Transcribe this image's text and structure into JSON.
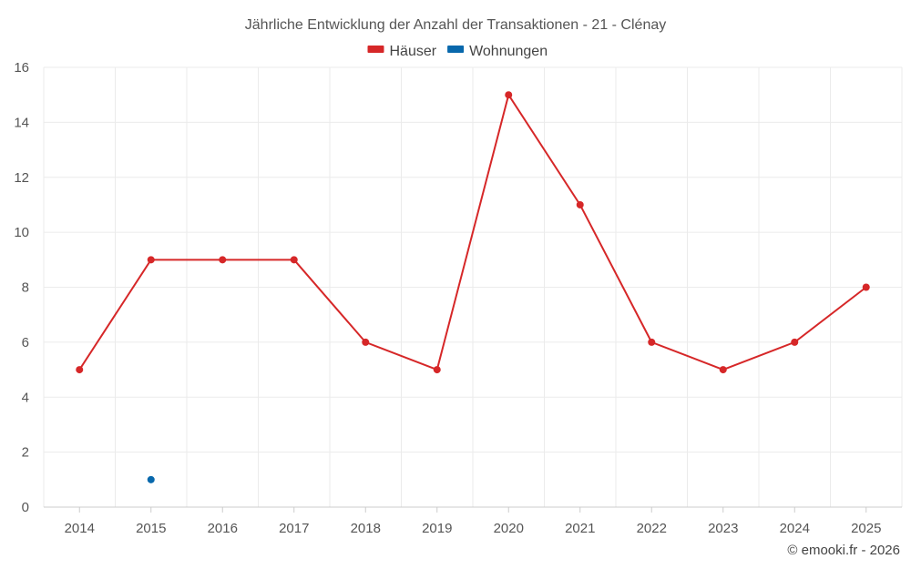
{
  "chart_data": {
    "type": "line",
    "title": "Jährliche Entwicklung der Anzahl der Transaktionen - 21 - Clénay",
    "xlabel": "",
    "ylabel": "",
    "categories": [
      "2014",
      "2015",
      "2016",
      "2017",
      "2018",
      "2019",
      "2020",
      "2021",
      "2022",
      "2023",
      "2024",
      "2025"
    ],
    "ylim": [
      0,
      16
    ],
    "yticks": [
      0,
      2,
      4,
      6,
      8,
      10,
      12,
      14,
      16
    ],
    "grid": true,
    "legend_position": "top-center",
    "series": [
      {
        "name": "Häuser",
        "color": "#d62728",
        "values": [
          5,
          9,
          9,
          9,
          6,
          5,
          15,
          11,
          6,
          5,
          6,
          8
        ]
      },
      {
        "name": "Wohnungen",
        "color": "#0868ac",
        "values": [
          null,
          1,
          null,
          null,
          null,
          null,
          null,
          null,
          null,
          null,
          null,
          null
        ]
      }
    ]
  },
  "credit": "© emooki.fr - 2026"
}
